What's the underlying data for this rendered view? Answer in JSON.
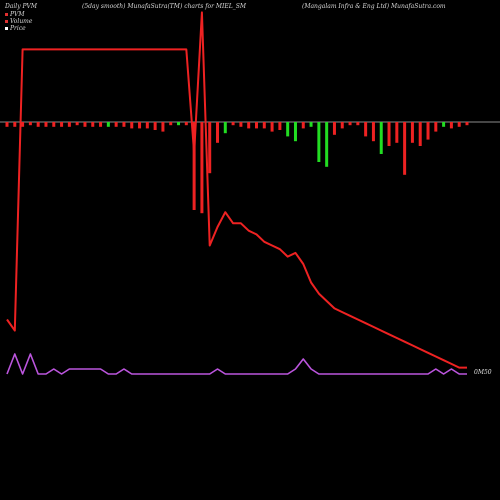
{
  "header": {
    "left": "Daily PVM",
    "mid": "(5day smooth) MunafaSutra(TM) charts for MIEL_SM",
    "right": "(Mangalam Infra  & Eng Ltd) MunafaSutra.com"
  },
  "legend": [
    {
      "label": "PVM",
      "color": "#e03030"
    },
    {
      "label": "Volume",
      "color": "#e03030"
    },
    {
      "label": "Price",
      "color": "#ffffff"
    }
  ],
  "end_label": "0M50",
  "colors": {
    "up": "#22dd22",
    "down": "#ee2222",
    "pvm_line": "#ee2222",
    "price_line": "#bb55dd",
    "zero_line": "#bbbbbb"
  },
  "chart_data": {
    "type": "line",
    "y_range": [
      -100,
      10
    ],
    "bars": [
      {
        "v": -3,
        "dir": "down"
      },
      {
        "v": -3,
        "dir": "down"
      },
      {
        "v": -3,
        "dir": "down"
      },
      {
        "v": -2,
        "dir": "down"
      },
      {
        "v": -3,
        "dir": "down"
      },
      {
        "v": -3,
        "dir": "down"
      },
      {
        "v": -3,
        "dir": "down"
      },
      {
        "v": -3,
        "dir": "down"
      },
      {
        "v": -3,
        "dir": "down"
      },
      {
        "v": -2,
        "dir": "down"
      },
      {
        "v": -3,
        "dir": "down"
      },
      {
        "v": -3,
        "dir": "down"
      },
      {
        "v": -3,
        "dir": "down"
      },
      {
        "v": -3,
        "dir": "up"
      },
      {
        "v": -3,
        "dir": "down"
      },
      {
        "v": -3,
        "dir": "down"
      },
      {
        "v": -4,
        "dir": "down"
      },
      {
        "v": -4,
        "dir": "down"
      },
      {
        "v": -4,
        "dir": "down"
      },
      {
        "v": -5,
        "dir": "down"
      },
      {
        "v": -6,
        "dir": "down"
      },
      {
        "v": -2,
        "dir": "down"
      },
      {
        "v": -2,
        "dir": "up"
      },
      {
        "v": -2,
        "dir": "down"
      },
      {
        "v": -55,
        "dir": "down"
      },
      {
        "v": -57,
        "dir": "down"
      },
      {
        "v": -32,
        "dir": "down"
      },
      {
        "v": -13,
        "dir": "down"
      },
      {
        "v": -7,
        "dir": "up"
      },
      {
        "v": -2,
        "dir": "down"
      },
      {
        "v": -3,
        "dir": "down"
      },
      {
        "v": -4,
        "dir": "down"
      },
      {
        "v": -4,
        "dir": "down"
      },
      {
        "v": -4,
        "dir": "down"
      },
      {
        "v": -6,
        "dir": "down"
      },
      {
        "v": -5,
        "dir": "down"
      },
      {
        "v": -9,
        "dir": "up"
      },
      {
        "v": -12,
        "dir": "up"
      },
      {
        "v": -4,
        "dir": "down"
      },
      {
        "v": -3,
        "dir": "up"
      },
      {
        "v": -25,
        "dir": "up"
      },
      {
        "v": -28,
        "dir": "up"
      },
      {
        "v": -8,
        "dir": "down"
      },
      {
        "v": -4,
        "dir": "down"
      },
      {
        "v": -2,
        "dir": "down"
      },
      {
        "v": -2,
        "dir": "down"
      },
      {
        "v": -9,
        "dir": "down"
      },
      {
        "v": -12,
        "dir": "down"
      },
      {
        "v": -20,
        "dir": "up"
      },
      {
        "v": -15,
        "dir": "down"
      },
      {
        "v": -13,
        "dir": "down"
      },
      {
        "v": -33,
        "dir": "down"
      },
      {
        "v": -13,
        "dir": "down"
      },
      {
        "v": -15,
        "dir": "down"
      },
      {
        "v": -11,
        "dir": "down"
      },
      {
        "v": -6,
        "dir": "down"
      },
      {
        "v": -3,
        "dir": "up"
      },
      {
        "v": -4,
        "dir": "down"
      },
      {
        "v": -3,
        "dir": "down"
      },
      {
        "v": -2,
        "dir": "down"
      }
    ],
    "pvm_line": [
      15,
      12,
      88,
      88,
      88,
      88,
      88,
      88,
      88,
      88,
      88,
      88,
      88,
      88,
      88,
      88,
      88,
      88,
      88,
      88,
      88,
      88,
      88,
      88,
      60,
      98,
      35,
      40,
      44,
      41,
      41,
      39,
      38,
      36,
      35,
      34,
      32,
      33,
      30,
      25,
      22,
      20,
      18,
      17,
      16,
      15,
      14,
      13,
      12,
      11,
      10,
      9,
      8,
      7,
      6,
      5,
      4,
      3,
      2,
      2
    ],
    "price_line": [
      0,
      4,
      0,
      4,
      0,
      0,
      1,
      0,
      1,
      1,
      1,
      1,
      1,
      0,
      0,
      1,
      0,
      0,
      0,
      0,
      0,
      0,
      0,
      0,
      0,
      0,
      0,
      1,
      0,
      0,
      0,
      0,
      0,
      0,
      0,
      0,
      0,
      1,
      3,
      1,
      0,
      0,
      0,
      0,
      0,
      0,
      0,
      0,
      0,
      0,
      0,
      0,
      0,
      0,
      0,
      1,
      0,
      1,
      0,
      0
    ]
  }
}
